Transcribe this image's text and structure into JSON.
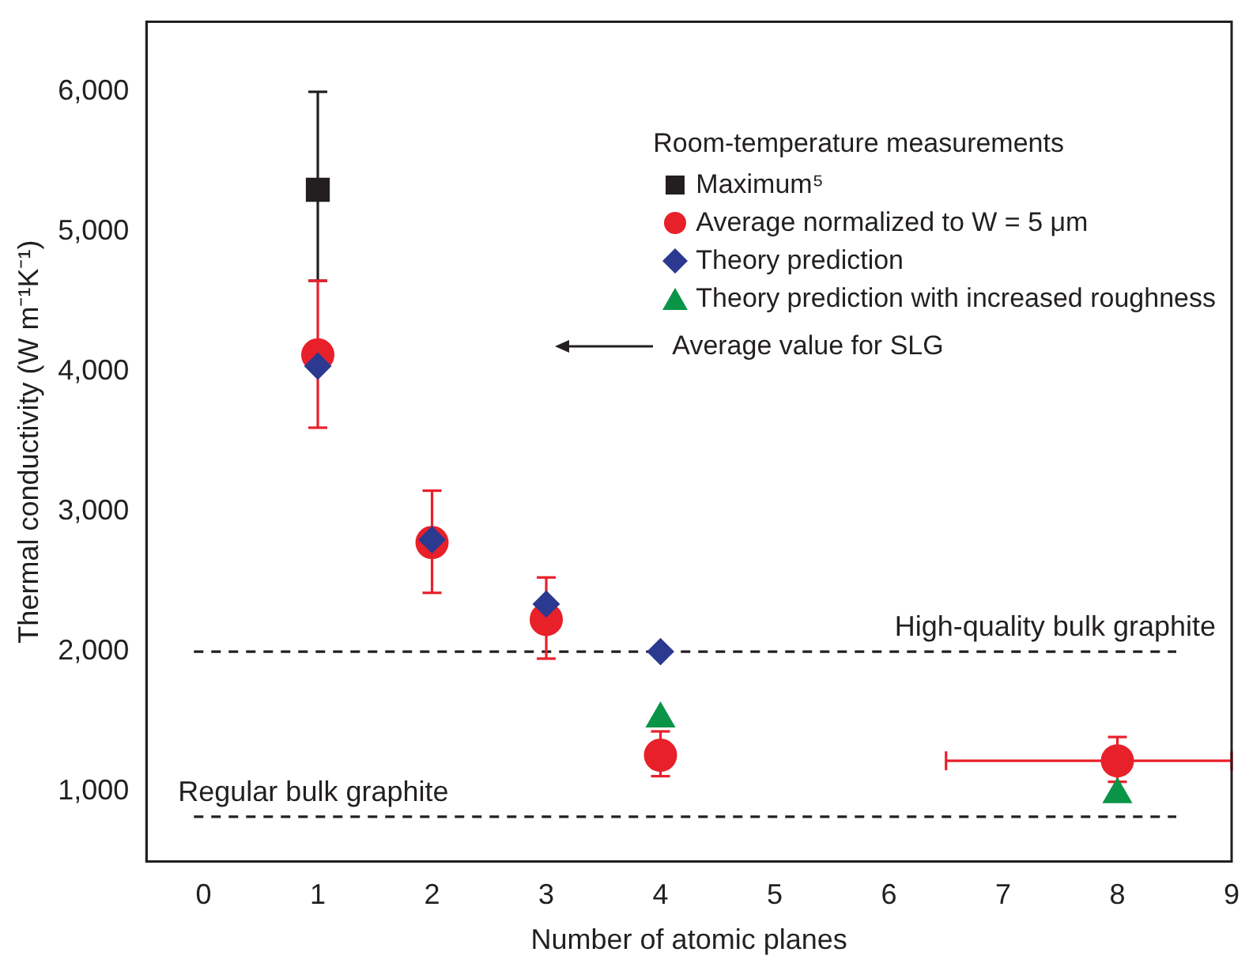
{
  "chart_data": {
    "type": "scatter",
    "xlabel": "Number of atomic planes",
    "ylabel": "Thermal conductivity (W m⁻¹K⁻¹)",
    "legend_title": "Room-temperature measurements",
    "legend": "top right",
    "grid": false,
    "xlim": [
      -0.5,
      9
    ],
    "xticks": [
      0,
      1,
      2,
      3,
      4,
      5,
      6,
      7,
      8,
      9
    ],
    "ylim": [
      500,
      6500
    ],
    "yticks": [
      {
        "value": 1000,
        "label": "1,000"
      },
      {
        "value": 2000,
        "label": "2,000"
      },
      {
        "value": 3000,
        "label": "3,000"
      },
      {
        "value": 4000,
        "label": "4,000"
      },
      {
        "value": 5000,
        "label": "5,000"
      },
      {
        "value": 6000,
        "label": "6,000"
      }
    ],
    "series": [
      {
        "name": "Maximum⁵",
        "color": "#231f20",
        "marker": "square",
        "x": [
          1
        ],
        "values": [
          5300
        ],
        "errors": [
          [
            4650,
            6000
          ]
        ]
      },
      {
        "name": "Average normalized to W = 5 μm",
        "color": "#e8202a",
        "marker": "circle",
        "x": [
          1,
          2,
          3,
          4,
          8
        ],
        "values": [
          4120,
          2780,
          2230,
          1260,
          1220
        ],
        "errors": [
          [
            3600,
            4650
          ],
          [
            2420,
            3150
          ],
          [
            1950,
            2530
          ],
          [
            1110,
            1430
          ],
          [
            1070,
            1390
          ]
        ],
        "xerrors": [
          null,
          null,
          null,
          null,
          [
            6.5,
            9
          ]
        ]
      },
      {
        "name": "Theory prediction",
        "color": "#2b3990",
        "marker": "diamond",
        "x": [
          1,
          2,
          3,
          4
        ],
        "values": [
          4040,
          2800,
          2340,
          2000
        ]
      },
      {
        "name": "Theory prediction with increased roughness",
        "color": "#0a9447",
        "marker": "triangle",
        "x": [
          4,
          8
        ],
        "values": [
          1520,
          980
        ]
      }
    ],
    "ref_lines": [
      {
        "axis": "y",
        "value": 2000,
        "label": "High-quality bulk graphite",
        "color": "#231f20",
        "line_style": "dashed"
      },
      {
        "axis": "y",
        "value": 820,
        "label": "Regular bulk graphite",
        "color": "#231f20",
        "line_style": "dashed"
      }
    ],
    "annotations": [
      "Average value for SLG"
    ]
  }
}
